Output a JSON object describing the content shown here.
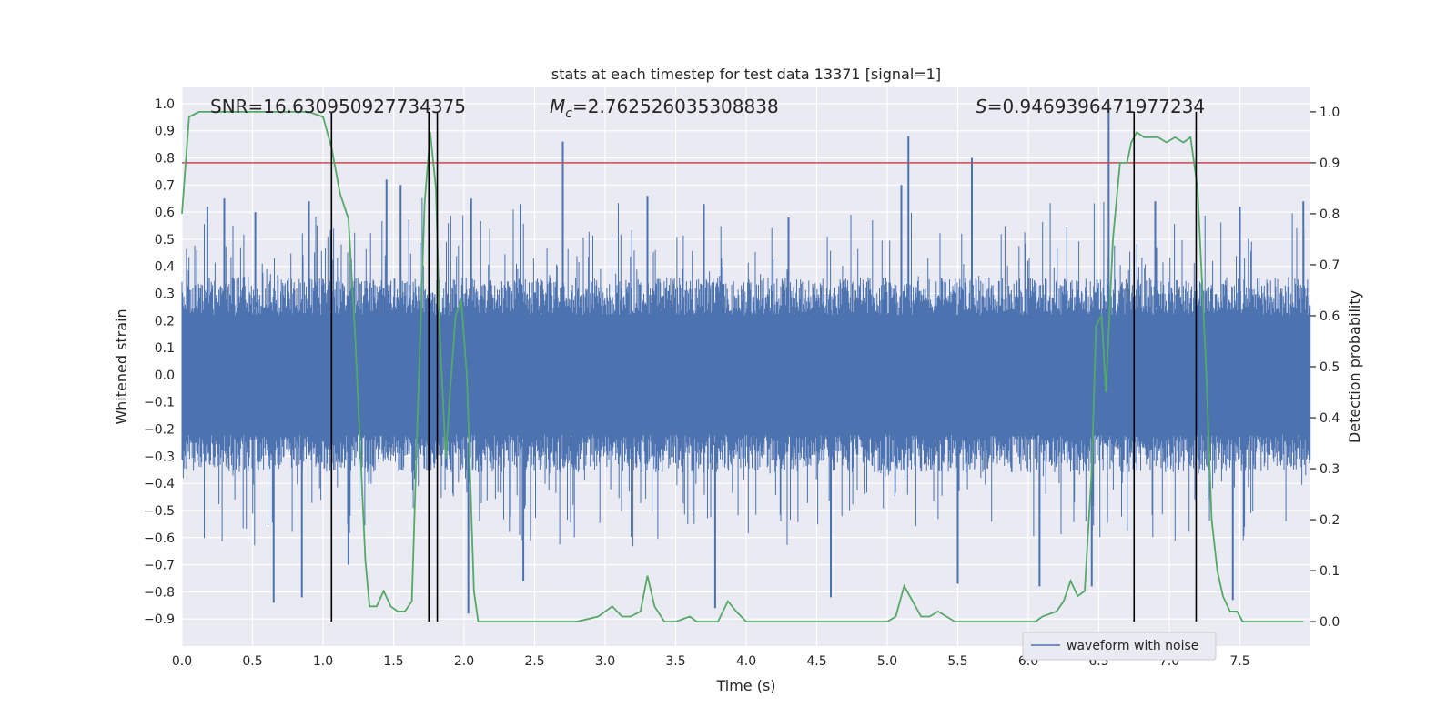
{
  "chart_data": {
    "type": "line",
    "title": "stats at each timestep for test data 13371 [signal=1]",
    "xlabel": "Time (s)",
    "ylabel": "Whitened strain",
    "ylabel_right": "Detection probability",
    "xlim": [
      0.0,
      8.0
    ],
    "ylim": [
      -1.0,
      1.06
    ],
    "ylim_right": [
      -0.048,
      1.048
    ],
    "x_ticks": [
      0.0,
      0.5,
      1.0,
      1.5,
      2.0,
      2.5,
      3.0,
      3.5,
      4.0,
      4.5,
      5.0,
      5.5,
      6.0,
      6.5,
      7.0,
      7.5
    ],
    "x_tick_labels": [
      "0.0",
      "0.5",
      "1.0",
      "1.5",
      "2.0",
      "2.5",
      "3.0",
      "3.5",
      "4.0",
      "4.5",
      "5.0",
      "5.5",
      "6.0",
      "6.5",
      "7.0",
      "7.5"
    ],
    "y_ticks": [
      -0.9,
      -0.8,
      -0.7,
      -0.6,
      -0.5,
      -0.4,
      -0.3,
      -0.2,
      -0.1,
      0.0,
      0.1,
      0.2,
      0.3,
      0.4,
      0.5,
      0.6,
      0.7,
      0.8,
      0.9,
      1.0
    ],
    "y_tick_labels": [
      "−0.9",
      "−0.8",
      "−0.7",
      "−0.6",
      "−0.5",
      "−0.4",
      "−0.3",
      "−0.2",
      "−0.1",
      "0.0",
      "0.1",
      "0.2",
      "0.3",
      "0.4",
      "0.5",
      "0.6",
      "0.7",
      "0.8",
      "0.9",
      "1.0"
    ],
    "y_right_ticks": [
      0.0,
      0.1,
      0.2,
      0.3,
      0.4,
      0.5,
      0.6,
      0.7,
      0.8,
      0.9,
      1.0
    ],
    "y_right_tick_labels": [
      "0.0",
      "0.1",
      "0.2",
      "0.3",
      "0.4",
      "0.5",
      "0.6",
      "0.7",
      "0.8",
      "0.9",
      "1.0"
    ],
    "annotations": {
      "snr": "SNR=16.630950927734375",
      "mc_symbol": "M",
      "mc_sub": "c",
      "mc_value": "=2.762526035308838",
      "s_symbol": "S",
      "s_value": "=0.9469396471977234"
    },
    "legend": {
      "label": "waveform with noise",
      "location": "lower-right"
    },
    "threshold_right": 0.9,
    "vertical_lines_x": [
      1.06,
      1.75,
      1.81,
      6.75,
      7.19
    ],
    "waveform": {
      "name": "waveform with noise",
      "color": "#4c72b0",
      "envelope": "dense noise, core roughly ±0.3, peaks ~±0.6",
      "spikes_top": [
        [
          0.18,
          0.62
        ],
        [
          0.3,
          0.65
        ],
        [
          0.52,
          0.6
        ],
        [
          0.9,
          0.64
        ],
        [
          1.45,
          0.72
        ],
        [
          1.55,
          0.7
        ],
        [
          2.05,
          0.65
        ],
        [
          2.4,
          0.63
        ],
        [
          2.7,
          0.86
        ],
        [
          3.3,
          0.66
        ],
        [
          3.7,
          0.63
        ],
        [
          4.3,
          0.58
        ],
        [
          5.1,
          0.7
        ],
        [
          5.15,
          0.88
        ],
        [
          5.6,
          0.8
        ],
        [
          6.57,
          1.0
        ],
        [
          6.9,
          0.64
        ],
        [
          7.5,
          0.62
        ],
        [
          7.95,
          0.64
        ]
      ],
      "spikes_bottom": [
        [
          0.65,
          -0.84
        ],
        [
          0.85,
          -0.82
        ],
        [
          1.18,
          -0.7
        ],
        [
          2.03,
          -0.88
        ],
        [
          2.42,
          -0.76
        ],
        [
          3.78,
          -0.86
        ],
        [
          4.6,
          -0.82
        ],
        [
          5.5,
          -0.77
        ],
        [
          6.08,
          -0.78
        ],
        [
          6.45,
          -0.78
        ],
        [
          7.45,
          -0.83
        ]
      ]
    },
    "series": [
      {
        "name": "",
        "color": "#55a868",
        "axis": "right",
        "x": [
          0.0,
          0.05,
          0.12,
          0.2,
          0.3,
          0.4,
          0.5,
          0.6,
          0.7,
          0.8,
          0.9,
          1.0,
          1.06,
          1.12,
          1.18,
          1.23,
          1.3,
          1.33,
          1.38,
          1.43,
          1.48,
          1.53,
          1.58,
          1.63,
          1.67,
          1.72,
          1.76,
          1.8,
          1.83,
          1.87,
          1.9,
          1.94,
          1.98,
          2.02,
          2.07,
          2.1,
          2.15,
          2.2,
          2.3,
          2.5,
          2.8,
          2.95,
          3.05,
          3.12,
          3.18,
          3.25,
          3.3,
          3.35,
          3.42,
          3.5,
          3.6,
          3.65,
          3.72,
          3.8,
          3.87,
          3.93,
          4.0,
          4.05,
          4.1,
          4.3,
          4.6,
          4.9,
          5.0,
          5.06,
          5.12,
          5.18,
          5.24,
          5.3,
          5.36,
          5.42,
          5.48,
          5.55,
          5.7,
          5.9,
          6.05,
          6.1,
          6.2,
          6.25,
          6.3,
          6.35,
          6.4,
          6.45,
          6.48,
          6.52,
          6.55,
          6.6,
          6.65,
          6.7,
          6.73,
          6.77,
          6.82,
          6.86,
          6.92,
          6.98,
          7.04,
          7.1,
          7.15,
          7.2,
          7.26,
          7.3,
          7.34,
          7.38,
          7.43,
          7.48,
          7.52,
          7.58,
          7.7,
          7.8,
          7.95
        ],
        "values": [
          0.8,
          0.99,
          1.0,
          1.0,
          1.0,
          1.0,
          1.0,
          1.0,
          1.0,
          1.0,
          1.0,
          0.99,
          0.93,
          0.84,
          0.79,
          0.55,
          0.12,
          0.03,
          0.03,
          0.06,
          0.03,
          0.02,
          0.02,
          0.04,
          0.4,
          0.82,
          0.96,
          0.85,
          0.55,
          0.32,
          0.45,
          0.6,
          0.63,
          0.48,
          0.06,
          0.0,
          0.0,
          0.0,
          0.0,
          0.0,
          0.0,
          0.01,
          0.03,
          0.01,
          0.01,
          0.02,
          0.09,
          0.03,
          0.0,
          0.0,
          0.01,
          0.0,
          0.0,
          0.0,
          0.04,
          0.02,
          0.0,
          0.0,
          0.0,
          0.0,
          0.0,
          0.0,
          0.0,
          0.01,
          0.07,
          0.04,
          0.01,
          0.01,
          0.02,
          0.01,
          0.0,
          0.0,
          0.0,
          0.0,
          0.0,
          0.01,
          0.02,
          0.04,
          0.08,
          0.05,
          0.06,
          0.3,
          0.58,
          0.6,
          0.45,
          0.75,
          0.9,
          0.9,
          0.94,
          0.96,
          0.95,
          0.95,
          0.95,
          0.94,
          0.95,
          0.94,
          0.95,
          0.85,
          0.5,
          0.2,
          0.1,
          0.05,
          0.02,
          0.02,
          0.0,
          0.0,
          0.0,
          0.0,
          0.0
        ]
      }
    ]
  }
}
